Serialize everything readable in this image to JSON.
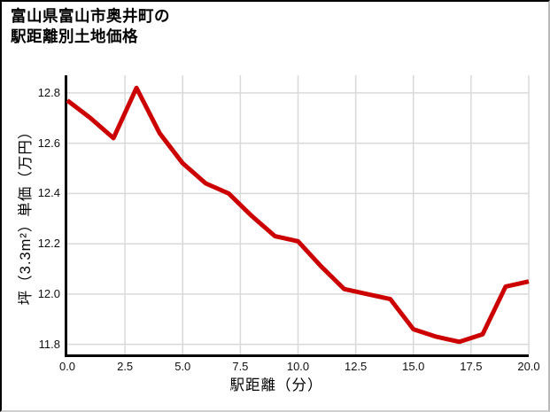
{
  "chart_data": {
    "type": "line",
    "title": "富山県富山市奥井町の駅距離別土地価格",
    "title_lines": [
      "富山県富山市奥井町の",
      "駅距離別土地価格"
    ],
    "xlabel": "駅距離（分）",
    "ylabel": "坪（3.3m²）単価（万円）",
    "x": [
      0,
      1,
      2,
      3,
      4,
      5,
      6,
      7,
      8,
      9,
      10,
      11,
      12,
      13,
      14,
      15,
      16,
      17,
      18,
      19,
      20
    ],
    "values": [
      12.77,
      12.7,
      12.62,
      12.82,
      12.64,
      12.52,
      12.44,
      12.4,
      12.31,
      12.23,
      12.21,
      12.11,
      12.02,
      12.0,
      11.98,
      11.86,
      11.83,
      11.81,
      11.84,
      12.03,
      12.05
    ],
    "xlim": [
      0,
      20
    ],
    "ylim": [
      11.76,
      12.87
    ],
    "x_ticks": [
      0,
      2.5,
      5,
      7.5,
      10,
      12.5,
      15,
      17.5,
      20
    ],
    "x_tick_labels": [
      "0.0",
      "2.5",
      "5.0",
      "7.5",
      "10.0",
      "12.5",
      "15.0",
      "17.5",
      "20.0"
    ],
    "y_ticks": [
      12.8,
      12.6,
      12.4,
      12.2,
      12.0,
      11.8
    ],
    "y_tick_labels": [
      "12.8",
      "12.6",
      "12.4",
      "12.2",
      "12.0",
      "11.8"
    ],
    "line_color": "#cc0000",
    "line_width": 5,
    "grid": true,
    "grid_color": "#d9d9d9",
    "axis_color": "#000000",
    "legend_position": "none"
  }
}
